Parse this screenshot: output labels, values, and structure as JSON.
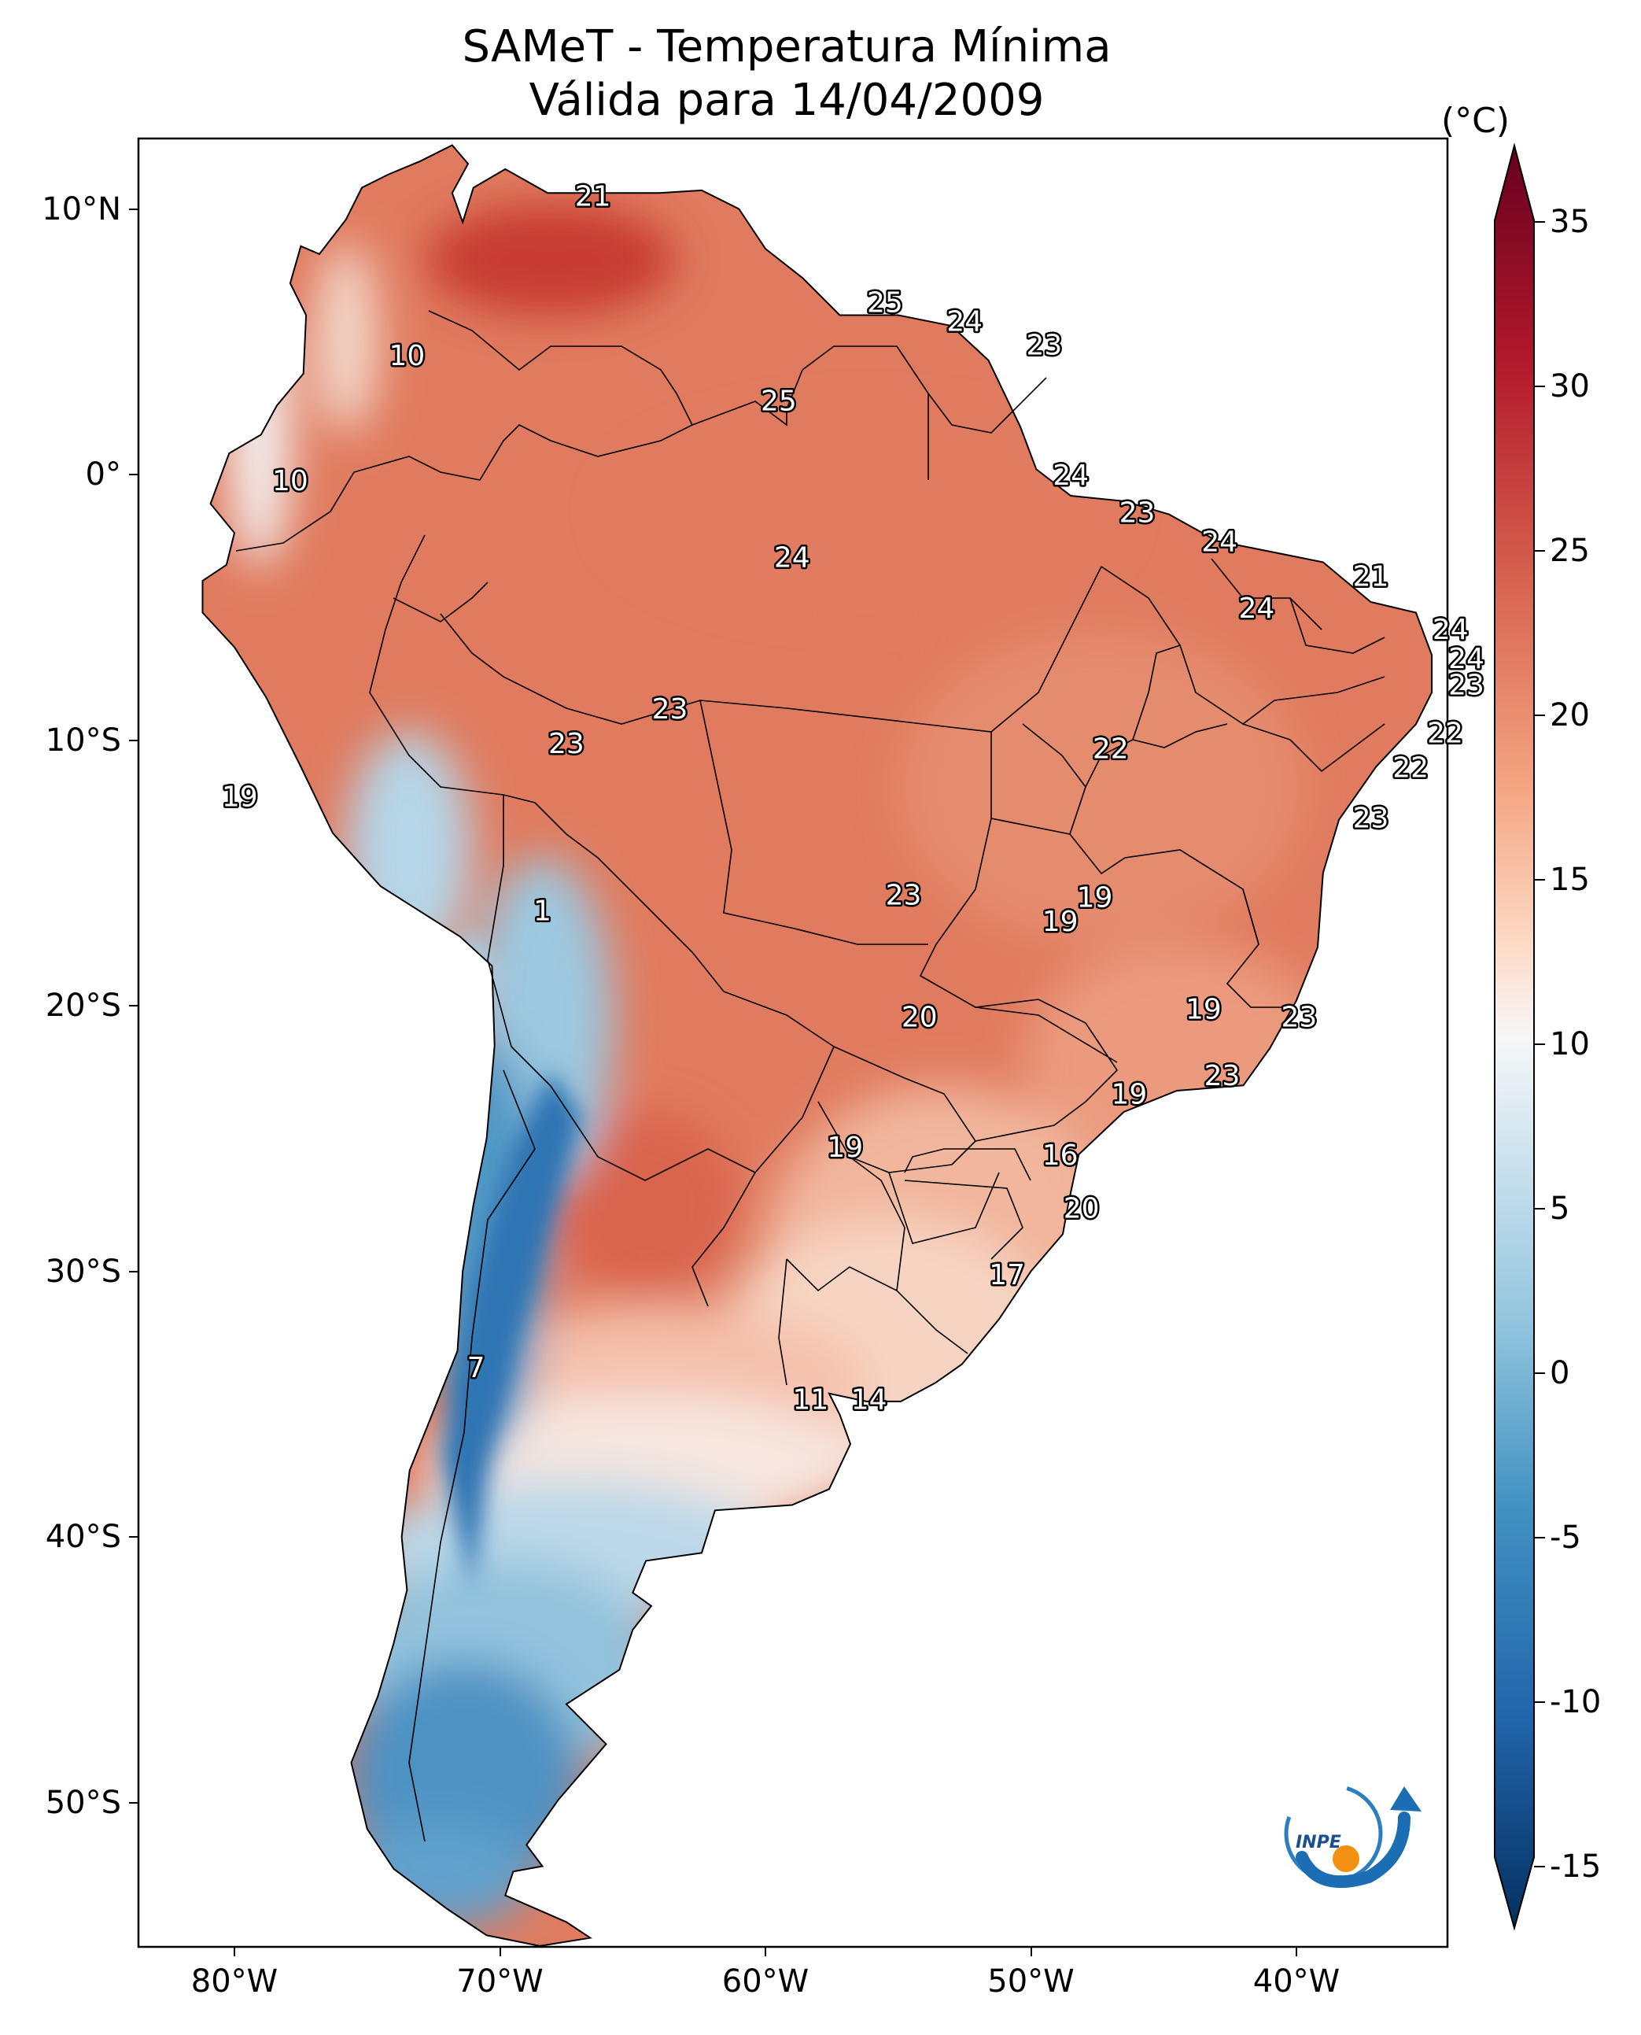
{
  "title": "SAMeT - Temperatura Mínima",
  "subtitle": "Válida para 14/04/2009",
  "colorbar": {
    "unit": "(°C)",
    "ticks": [
      "35",
      "30",
      "25",
      "20",
      "15",
      "10",
      "5",
      "0",
      "-5",
      "-10",
      "-15"
    ],
    "colors": {
      "top": "#67001f",
      "red": "#b2182b",
      "orange_red": "#d6604d",
      "salmon": "#f4a582",
      "peach": "#fddbc7",
      "white": "#f7f7f7",
      "pale_blue": "#d1e5f0",
      "light_blue": "#92c5de",
      "blue": "#4393c3",
      "dark_blue": "#2166ac",
      "bottom": "#053061"
    }
  },
  "axes": {
    "lon_ticks": [
      "80°W",
      "70°W",
      "60°W",
      "50°W",
      "40°W"
    ],
    "lat_ticks": [
      "10°N",
      "0°",
      "10°S",
      "20°S",
      "30°S",
      "40°S",
      "50°S"
    ]
  },
  "stations": [
    {
      "value": "21",
      "lon": -66.5,
      "lat": 10.5
    },
    {
      "value": "10",
      "lon": -73.5,
      "lat": 4.5
    },
    {
      "value": "25",
      "lon": -55.5,
      "lat": 6.5
    },
    {
      "value": "24",
      "lon": -52.5,
      "lat": 5.8
    },
    {
      "value": "23",
      "lon": -49.5,
      "lat": 4.9
    },
    {
      "value": "25",
      "lon": -59.5,
      "lat": 2.8
    },
    {
      "value": "10",
      "lon": -77.9,
      "lat": -0.2
    },
    {
      "value": "24",
      "lon": -48.5,
      "lat": 0.0
    },
    {
      "value": "23",
      "lon": -46.0,
      "lat": -1.4
    },
    {
      "value": "24",
      "lon": -42.9,
      "lat": -2.5
    },
    {
      "value": "21",
      "lon": -37.2,
      "lat": -3.8
    },
    {
      "value": "24",
      "lon": -59.0,
      "lat": -3.1
    },
    {
      "value": "24",
      "lon": -41.5,
      "lat": -5.0
    },
    {
      "value": "24",
      "lon": -34.2,
      "lat": -5.8
    },
    {
      "value": "24",
      "lon": -33.6,
      "lat": -6.9
    },
    {
      "value": "23",
      "lon": -33.6,
      "lat": -7.9
    },
    {
      "value": "23",
      "lon": -63.6,
      "lat": -8.8
    },
    {
      "value": "23",
      "lon": -67.5,
      "lat": -10.1
    },
    {
      "value": "22",
      "lon": -47.0,
      "lat": -10.3
    },
    {
      "value": "22",
      "lon": -34.4,
      "lat": -9.7
    },
    {
      "value": "22",
      "lon": -35.7,
      "lat": -11.0
    },
    {
      "value": "19",
      "lon": -79.8,
      "lat": -12.1
    },
    {
      "value": "23",
      "lon": -37.2,
      "lat": -12.9
    },
    {
      "value": "1",
      "lon": -68.4,
      "lat": -16.4
    },
    {
      "value": "23",
      "lon": -54.8,
      "lat": -15.8
    },
    {
      "value": "19",
      "lon": -47.6,
      "lat": -15.9
    },
    {
      "value": "19",
      "lon": -48.9,
      "lat": -16.8
    },
    {
      "value": "20",
      "lon": -54.2,
      "lat": -20.4
    },
    {
      "value": "19",
      "lon": -43.5,
      "lat": -20.1
    },
    {
      "value": "23",
      "lon": -39.9,
      "lat": -20.4
    },
    {
      "value": "23",
      "lon": -42.8,
      "lat": -22.6
    },
    {
      "value": "19",
      "lon": -46.3,
      "lat": -23.3
    },
    {
      "value": "19",
      "lon": -57.0,
      "lat": -25.3
    },
    {
      "value": "16",
      "lon": -48.9,
      "lat": -25.6
    },
    {
      "value": "20",
      "lon": -48.1,
      "lat": -27.6
    },
    {
      "value": "17",
      "lon": -50.9,
      "lat": -30.1
    },
    {
      "value": "7",
      "lon": -70.9,
      "lat": -33.6
    },
    {
      "value": "11",
      "lon": -58.3,
      "lat": -34.8
    },
    {
      "value": "14",
      "lon": -56.1,
      "lat": -34.8
    }
  ],
  "logo_text": "INPE"
}
